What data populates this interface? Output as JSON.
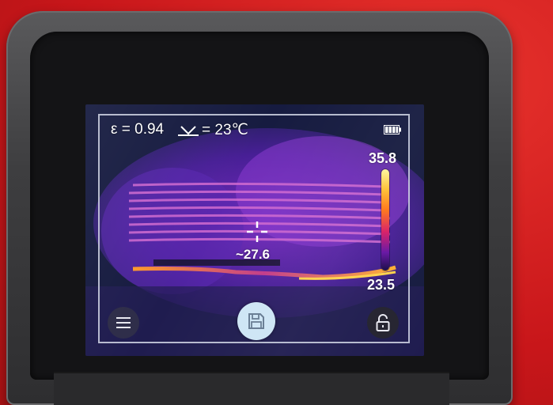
{
  "hud": {
    "emissivity": "ε = 0.94",
    "reflected_temp": "= 23℃",
    "scale_max": "35.8",
    "scale_min": "23.5",
    "center_temp": "~27.6"
  },
  "icons": {
    "reflected": "reflected-temperature-icon",
    "battery": "battery-icon",
    "crosshair": "crosshair-icon",
    "menu": "hamburger-menu-icon",
    "save": "floppy-disk-save-icon",
    "lock": "unlocked-padlock-icon"
  },
  "colors": {
    "background": "#d41a1a",
    "device_body": "#3e3e40",
    "screen_bg": "#141a3d",
    "palette_hot": "#ffc23a",
    "palette_mid": "#d8236a",
    "palette_cool": "#6a1aa6",
    "save_button": "#cfe6f5"
  },
  "battery_level": 1.0
}
